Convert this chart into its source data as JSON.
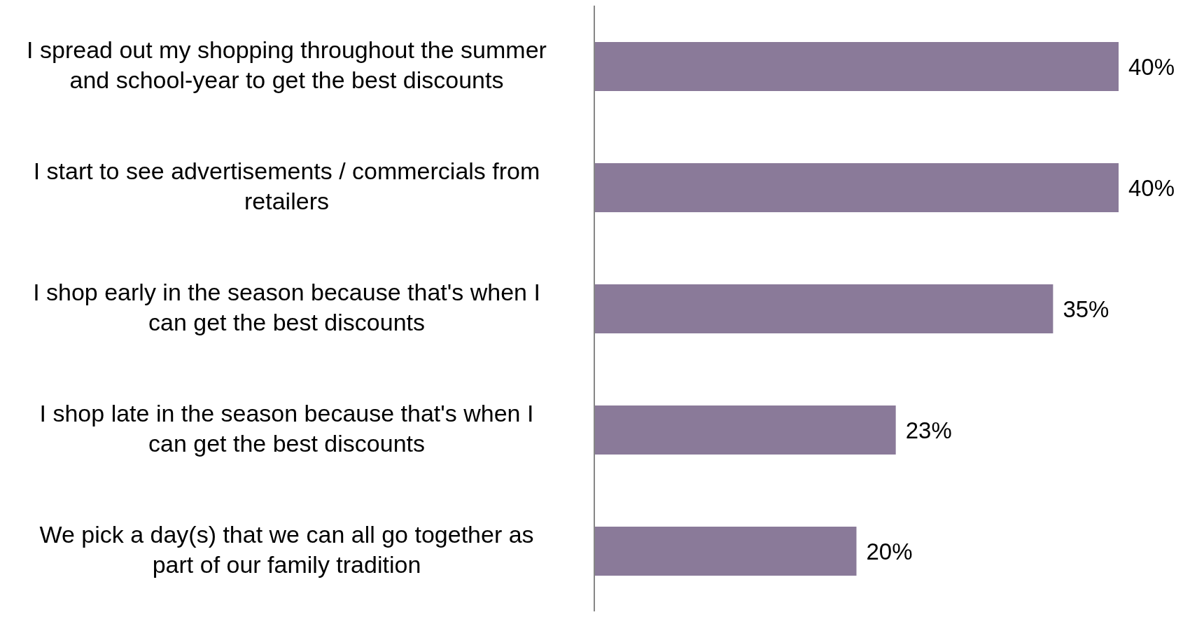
{
  "chart_data": {
    "type": "bar",
    "orientation": "horizontal",
    "tick_labels": "y",
    "categories": [
      "I spread out my shopping throughout the summer and school-year to get the best discounts",
      "I start to see advertisements / commercials from retailers",
      "I shop early in the season because that's when I can get the best discounts",
      "I shop late in the season because that's when I can get the best discounts",
      "We pick a day(s) that we can all go together as part of our family tradition"
    ],
    "values": [
      40,
      40,
      35,
      23,
      20
    ],
    "value_labels": [
      "40%",
      "40%",
      "35%",
      "23%",
      "20%"
    ],
    "color": "#8a7a99",
    "grid": false,
    "legend": false
  }
}
